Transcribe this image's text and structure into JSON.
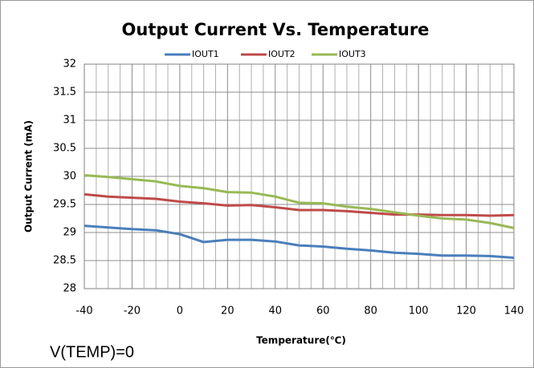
{
  "chart_data": {
    "type": "line",
    "title": "Output Current Vs. Temperature",
    "x_label": "Temperature(℃)",
    "y_label": "Output Current (mA)",
    "annotation": "V(TEMP)=0",
    "x": [
      -40,
      -30,
      -20,
      -10,
      0,
      10,
      20,
      30,
      40,
      50,
      60,
      70,
      80,
      90,
      100,
      110,
      120,
      130,
      140
    ],
    "series": [
      {
        "name": "IOUT1",
        "color": "#4a7ebb",
        "values": [
          29.12,
          29.09,
          29.06,
          29.04,
          28.97,
          28.83,
          28.87,
          28.87,
          28.84,
          28.77,
          28.75,
          28.71,
          28.68,
          28.64,
          28.62,
          28.59,
          28.59,
          28.58,
          28.55
        ]
      },
      {
        "name": "IOUT2",
        "color": "#be4b48",
        "values": [
          29.68,
          29.64,
          29.62,
          29.6,
          29.55,
          29.52,
          29.48,
          29.49,
          29.45,
          29.4,
          29.4,
          29.38,
          29.35,
          29.32,
          29.32,
          29.31,
          29.31,
          29.3,
          29.31
        ]
      },
      {
        "name": "IOUT3",
        "color": "#98b954",
        "values": [
          30.02,
          29.99,
          29.95,
          29.91,
          29.83,
          29.79,
          29.72,
          29.71,
          29.64,
          29.53,
          29.52,
          29.46,
          29.42,
          29.36,
          29.3,
          29.25,
          29.23,
          29.17,
          29.08
        ]
      }
    ],
    "xlim": [
      -40,
      140
    ],
    "xticks": [
      -40,
      -20,
      0,
      20,
      40,
      60,
      80,
      100,
      120,
      140
    ],
    "ylim": [
      28,
      32
    ],
    "yticks": [
      28,
      28.5,
      29,
      29.5,
      30,
      30.5,
      31,
      31.5,
      32
    ],
    "grid": true,
    "legend": "top"
  }
}
